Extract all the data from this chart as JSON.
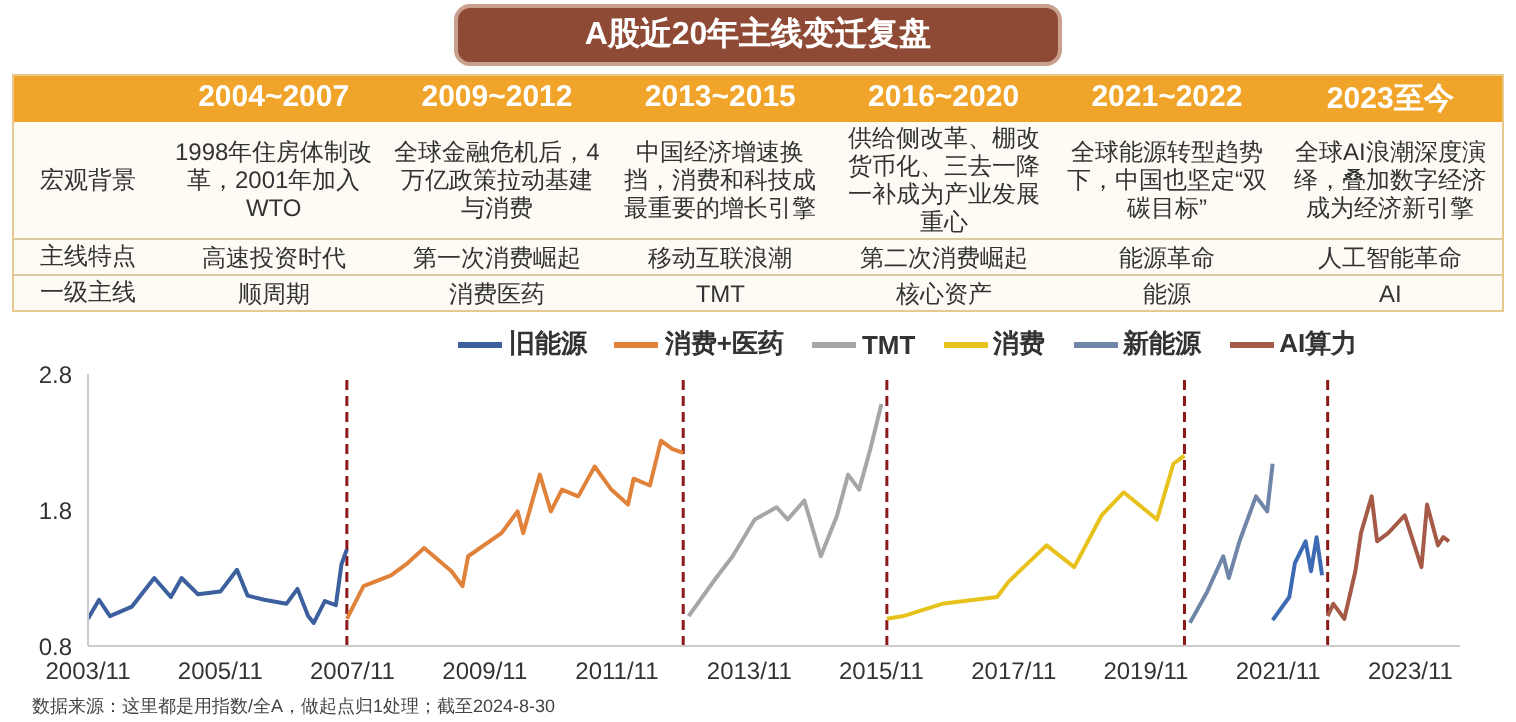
{
  "chart_data": [
    {
      "type": "other",
      "title": "A股近20年主线变迁复盘",
      "categories": [
        null,
        "2004~2007",
        "2009~2012",
        "2013~2015",
        "2016~2020",
        "2021~2022",
        "2023至今"
      ],
      "y_categories": [
        "宏观背景",
        "主线特点",
        "一级主线"
      ],
      "cell_labels": [
        [
          "1998年住房体制改革，2001年加入WTO",
          "全球金融危机后，4万亿政策拉动基建与消费",
          "中国经济增速换挡，消费和科技成最重要的增长引擎",
          "供给侧改革、棚改货币化、三去一降一补成为产业发展重心",
          "全球能源转型趋势下，中国也坚定“双碳目标”",
          "全球AI浪潮深度演绎，叠加数字经济成为经济新引擎"
        ],
        [
          "高速投资时代",
          "第一次消费崛起",
          "移动互联浪潮",
          "第二次消费崛起",
          "能源革命",
          "人工智能革命"
        ],
        [
          "顺周期",
          "消费医药",
          "TMT",
          "核心资产",
          "能源",
          "AI"
        ]
      ]
    },
    {
      "type": "line",
      "legend": "top",
      "xlim": [
        "2003-11",
        "2024-08"
      ],
      "xticks": [
        {
          "value": "2003-11",
          "label": "2003/11"
        },
        {
          "value": "2005-11",
          "label": "2005/11"
        },
        {
          "value": "2007-11",
          "label": "2007/11"
        },
        {
          "value": "2009-11",
          "label": "2009/11"
        },
        {
          "value": "2011-11",
          "label": "2011/11"
        },
        {
          "value": "2013-11",
          "label": "2013/11"
        },
        {
          "value": "2015-11",
          "label": "2015/11"
        },
        {
          "value": "2017-11",
          "label": "2017/11"
        },
        {
          "value": "2019-11",
          "label": "2019/11"
        },
        {
          "value": "2021-11",
          "label": "2021/11"
        },
        {
          "value": "2023-11",
          "label": "2023/11"
        }
      ],
      "ylim": [
        0.8,
        2.8
      ],
      "yticks": [
        0.8,
        1.8,
        2.8
      ],
      "series": [
        {
          "name": "旧能源",
          "color": "#3c5f9e",
          "x": [
            "2003-11",
            "2004-01",
            "2004-03",
            "2004-07",
            "2004-11",
            "2005-02",
            "2005-04",
            "2005-07",
            "2005-11",
            "2006-02",
            "2006-04",
            "2006-07",
            "2006-11",
            "2007-01",
            "2007-03",
            "2007-04",
            "2007-06",
            "2007-08",
            "2007-09",
            "2007-10"
          ],
          "values": [
            1.0,
            1.14,
            1.02,
            1.09,
            1.3,
            1.16,
            1.3,
            1.18,
            1.2,
            1.36,
            1.17,
            1.14,
            1.11,
            1.22,
            1.02,
            0.97,
            1.13,
            1.1,
            1.4,
            1.51
          ]
        },
        {
          "name": "消费+医药",
          "color": "#e0823a",
          "x": [
            "2007-10",
            "2008-01",
            "2008-06",
            "2008-09",
            "2008-12",
            "2009-05",
            "2009-07",
            "2009-08",
            "2010-02",
            "2010-05",
            "2010-06",
            "2010-09",
            "2010-11",
            "2011-01",
            "2011-04",
            "2011-07",
            "2011-10",
            "2012-01",
            "2012-02",
            "2012-05",
            "2012-07",
            "2012-09",
            "2012-11"
          ],
          "values": [
            1.0,
            1.24,
            1.32,
            1.41,
            1.52,
            1.35,
            1.24,
            1.46,
            1.63,
            1.79,
            1.63,
            2.06,
            1.79,
            1.95,
            1.9,
            2.12,
            1.95,
            1.84,
            2.03,
            1.98,
            2.31,
            2.25,
            2.22
          ]
        },
        {
          "name": "TMT",
          "color": "#a6a6a6",
          "x": [
            "2012-12",
            "2013-05",
            "2013-08",
            "2013-12",
            "2014-04",
            "2014-06",
            "2014-09",
            "2014-12",
            "2015-03",
            "2015-05",
            "2015-07",
            "2015-09",
            "2015-11"
          ],
          "values": [
            1.02,
            1.3,
            1.46,
            1.73,
            1.82,
            1.73,
            1.87,
            1.46,
            1.76,
            2.06,
            1.95,
            2.25,
            2.58
          ]
        },
        {
          "name": "消费",
          "color": "#e8c21c",
          "x": [
            "2015-12",
            "2016-03",
            "2016-10",
            "2017-08",
            "2017-10",
            "2018-05",
            "2018-10",
            "2019-03",
            "2019-07",
            "2020-01",
            "2020-04",
            "2020-06"
          ],
          "values": [
            1.0,
            1.02,
            1.11,
            1.16,
            1.27,
            1.54,
            1.38,
            1.76,
            1.93,
            1.73,
            2.14,
            2.2
          ]
        },
        {
          "name": "新能源",
          "color": "#6f86a8",
          "x": [
            "2020-07",
            "2020-10",
            "2021-01",
            "2021-02",
            "2021-04",
            "2021-07",
            "2021-09",
            "2021-10"
          ],
          "values": [
            0.97,
            1.19,
            1.46,
            1.3,
            1.57,
            1.9,
            1.79,
            2.14
          ]
        },
        {
          "color": "#3d6bb3",
          "x": [
            "2021-10",
            "2022-01",
            "2022-02",
            "2022-04",
            "2022-05",
            "2022-06",
            "2022-07"
          ],
          "values": [
            0.99,
            1.16,
            1.41,
            1.57,
            1.35,
            1.6,
            1.32
          ]
        },
        {
          "name": "AI算力",
          "color": "#a55a48",
          "x": [
            "2022-08",
            "2022-09",
            "2022-11",
            "2023-01",
            "2023-02",
            "2023-04",
            "2023-05",
            "2023-07",
            "2023-10",
            "2024-01",
            "2024-02",
            "2024-04",
            "2024-05",
            "2024-06"
          ],
          "values": [
            1.02,
            1.11,
            1.0,
            1.35,
            1.63,
            1.9,
            1.57,
            1.63,
            1.76,
            1.38,
            1.84,
            1.54,
            1.6,
            1.57
          ]
        }
      ],
      "ref_lines": [
        {
          "axis": "x",
          "value": "2007-10",
          "color": "#8b1a1a",
          "line_style": "dashed"
        },
        {
          "axis": "x",
          "value": "2012-11",
          "color": "#8b1a1a",
          "line_style": "dashed"
        },
        {
          "axis": "x",
          "value": "2015-12",
          "color": "#8b1a1a",
          "line_style": "dashed"
        },
        {
          "axis": "x",
          "value": "2020-06",
          "color": "#8b1a1a",
          "line_style": "dashed"
        },
        {
          "axis": "x",
          "value": "2022-08",
          "color": "#8b1a1a",
          "line_style": "dashed"
        }
      ],
      "annotations": [
        "数据来源：这里都是用指数/全A，做起点归1处理；截至2024-8-30"
      ]
    }
  ]
}
